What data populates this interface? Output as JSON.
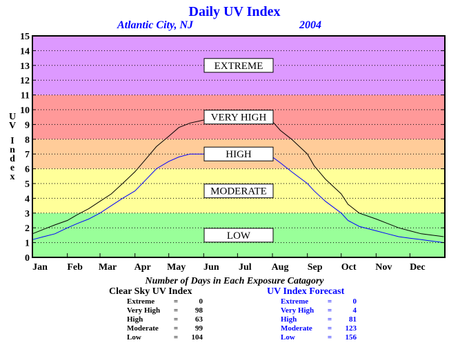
{
  "chart_data": {
    "type": "line",
    "title": "Daily UV Index",
    "subtitle_location": "Atlantic City, NJ",
    "subtitle_year": "2004",
    "ylabel": "UV Index",
    "xlabel": "",
    "ylim": [
      0,
      15
    ],
    "yticks": [
      0,
      1,
      2,
      3,
      4,
      5,
      6,
      7,
      8,
      9,
      10,
      11,
      12,
      13,
      14,
      15
    ],
    "xlim": [
      0,
      366
    ],
    "months": [
      {
        "label": "Jan",
        "day": 0
      },
      {
        "label": "Feb",
        "day": 31
      },
      {
        "label": "Mar",
        "day": 60
      },
      {
        "label": "Apr",
        "day": 91
      },
      {
        "label": "May",
        "day": 121
      },
      {
        "label": "Jun",
        "day": 152
      },
      {
        "label": "Jul",
        "day": 182
      },
      {
        "label": "Aug",
        "day": 213
      },
      {
        "label": "Sep",
        "day": 244
      },
      {
        "label": "Oct",
        "day": 274
      },
      {
        "label": "Nov",
        "day": 305
      },
      {
        "label": "Dec",
        "day": 335
      }
    ],
    "grid": true,
    "zones": [
      {
        "label": "LOW",
        "from": 0,
        "to": 3,
        "color": "#99ff99"
      },
      {
        "label": "MODERATE",
        "from": 3,
        "to": 6,
        "color": "#ffff99"
      },
      {
        "label": "HIGH",
        "from": 6,
        "to": 8,
        "color": "#ffcc99"
      },
      {
        "label": "VERY HIGH",
        "from": 8,
        "to": 11,
        "color": "#ff9999"
      },
      {
        "label": "EXTREME",
        "from": 11,
        "to": 15,
        "color": "#dd99ff"
      }
    ],
    "series": [
      {
        "name": "Clear Sky UV Index",
        "color": "#000000",
        "x": [
          0,
          10,
          20,
          31,
          40,
          50,
          60,
          70,
          80,
          91,
          100,
          110,
          121,
          130,
          140,
          152,
          160,
          170,
          182,
          190,
          200,
          213,
          220,
          230,
          244,
          250,
          260,
          274,
          280,
          290,
          305,
          315,
          325,
          335,
          345,
          355,
          365
        ],
        "y": [
          1.6,
          1.9,
          2.2,
          2.5,
          2.9,
          3.3,
          3.8,
          4.3,
          5.0,
          5.8,
          6.6,
          7.5,
          8.2,
          8.8,
          9.1,
          9.3,
          9.5,
          9.6,
          9.6,
          9.5,
          9.4,
          9.2,
          8.6,
          8.0,
          7.0,
          6.2,
          5.3,
          4.3,
          3.6,
          3.0,
          2.6,
          2.3,
          2.0,
          1.8,
          1.6,
          1.5,
          1.4
        ]
      },
      {
        "name": "UV Index Forecast",
        "color": "#0000ff",
        "x": [
          0,
          10,
          20,
          31,
          40,
          50,
          60,
          70,
          80,
          91,
          100,
          110,
          121,
          130,
          140,
          152,
          160,
          170,
          182,
          190,
          200,
          213,
          220,
          230,
          244,
          250,
          260,
          274,
          280,
          290,
          305,
          315,
          325,
          335,
          345,
          355,
          365
        ],
        "y": [
          1.2,
          1.4,
          1.6,
          2.0,
          2.3,
          2.6,
          3.0,
          3.5,
          4.0,
          4.5,
          5.2,
          6.0,
          6.5,
          6.8,
          7.0,
          7.0,
          7.2,
          7.3,
          7.2,
          7.1,
          7.0,
          6.8,
          6.4,
          5.8,
          5.0,
          4.5,
          3.8,
          3.0,
          2.5,
          2.1,
          1.8,
          1.6,
          1.4,
          1.3,
          1.2,
          1.1,
          1.0
        ]
      }
    ]
  },
  "stats": {
    "heading": "Number of Days in Each Exposure Catagory",
    "clear_sky": {
      "title": "Clear Sky UV Index",
      "rows": [
        {
          "label": "Extreme",
          "value": "0"
        },
        {
          "label": "Very High",
          "value": "98"
        },
        {
          "label": "High",
          "value": "63"
        },
        {
          "label": "Moderate",
          "value": "99"
        },
        {
          "label": "Low",
          "value": "104"
        }
      ]
    },
    "forecast": {
      "title": "UV Index Forecast",
      "rows": [
        {
          "label": "Extreme",
          "value": "0"
        },
        {
          "label": "Very High",
          "value": "4"
        },
        {
          "label": "High",
          "value": "81"
        },
        {
          "label": "Moderate",
          "value": "123"
        },
        {
          "label": "Low",
          "value": "156"
        }
      ]
    }
  }
}
